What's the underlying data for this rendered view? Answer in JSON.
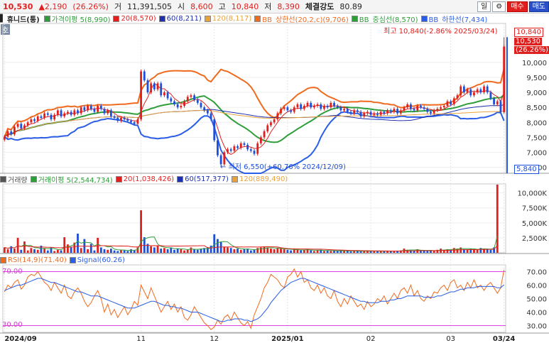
{
  "header": {
    "price": "10,530",
    "change": "▲2,190",
    "change_pct": "(26.26%)",
    "vol_label": "거",
    "volume": "11,391,505",
    "open_label": "시",
    "open": "8,600",
    "high_label": "고",
    "high": "10,840",
    "low_label": "저",
    "low": "8,390",
    "strength_label": "체결강도",
    "strength": "80.89",
    "period_button": "일",
    "settings_button": "⚙",
    "buy_button": "매수",
    "sell_button": "매도"
  },
  "price_legend": {
    "name": "휴니드(통)",
    "items": [
      {
        "label": "가격이평 5(8,990)",
        "color": "#2e9e3a"
      },
      {
        "label": "20(8,570)",
        "color": "#e0201e"
      },
      {
        "label": "60(8,211)",
        "color": "#1e2fb0"
      },
      {
        "label": "120(8,117)",
        "color": "#e8a23a"
      },
      {
        "label": "BB_상한선(20,2,c)(9,706)",
        "color": "#f06a1e"
      },
      {
        "label": "BB_중심선(8,570)",
        "color": "#2e9e3a"
      },
      {
        "label": "BB_하한선(7,434)",
        "color": "#2a5ee6"
      }
    ],
    "ho": "호"
  },
  "annotations": {
    "max_text": "최고 10,840(-2.86% 2025/03/24)",
    "min_text": "← 최저 6,550(+60.76% 2024/12/09)",
    "tag_high": "10,840",
    "tag_price": "10,530",
    "tag_pct": "(26.26%)",
    "tag_low": "5,840"
  },
  "volume_legend": {
    "items": [
      {
        "label": "거래량",
        "color": "#555555"
      },
      {
        "label": "거래이평 5(2,544,734)",
        "color": "#2e9e3a"
      },
      {
        "label": "20(1,038,426)",
        "color": "#e0201e"
      },
      {
        "label": "60(517,377)",
        "color": "#1e2fb0"
      },
      {
        "label": "120(889,490)",
        "color": "#e8a23a"
      }
    ]
  },
  "rsi_legend": {
    "items": [
      {
        "label": "RSI(14,9)(71.40)",
        "color": "#f06a1e"
      },
      {
        "label": "Signal(60.26)",
        "color": "#2a5ee6"
      }
    ],
    "level_70": "70.00",
    "level_30": "30.00"
  },
  "x_axis": [
    {
      "label": "2024/09",
      "date_index": 0
    },
    {
      "label": "11",
      "date_index": 41
    },
    {
      "label": "12",
      "date_index": 63
    },
    {
      "label": "2025/01",
      "date_index": 85
    },
    {
      "label": "02",
      "date_index": 110
    },
    {
      "label": "03",
      "date_index": 134
    },
    {
      "label": "03/24",
      "date_index": 150
    }
  ],
  "chart_data": [
    {
      "type": "candlestick",
      "title": "휴니드(통)",
      "ylim": [
        6300,
        11300
      ],
      "yticks": [
        6500,
        7000,
        7500,
        8000,
        8500,
        9000,
        9500,
        10000
      ],
      "close": [
        7520,
        7700,
        7600,
        7850,
        7950,
        7800,
        7900,
        8000,
        8100,
        8050,
        8200,
        8150,
        8300,
        8250,
        8100,
        8250,
        8400,
        8200,
        8300,
        8350,
        8250,
        8400,
        8300,
        8500,
        8400,
        8550,
        8450,
        8350,
        8550,
        8450,
        8300,
        8400,
        8200,
        8150,
        8050,
        8150,
        8100,
        8050,
        8000,
        7950,
        8100,
        9700,
        9400,
        9000,
        9300,
        9100,
        9300,
        8900,
        9000,
        8800,
        8700,
        8600,
        8500,
        8550,
        8700,
        8850,
        8900,
        8750,
        8650,
        8500,
        8400,
        8300,
        8100,
        7400,
        6900,
        6600,
        7000,
        7100,
        7050,
        7200,
        7150,
        7300,
        7250,
        7100,
        7050,
        6950,
        7300,
        7500,
        7700,
        7900,
        8000,
        8100,
        8300,
        8450,
        8500,
        8400,
        8350,
        8500,
        8600,
        8450,
        8550,
        8650,
        8500,
        8550,
        8600,
        8450,
        8550,
        8500,
        8650,
        8550,
        8500,
        8400,
        8450,
        8350,
        8300,
        8400,
        8350,
        8200,
        8300,
        8350,
        8250,
        8300,
        8250,
        8350,
        8300,
        8400,
        8350,
        8450,
        8300,
        8400,
        8500,
        8600,
        8450,
        8400,
        8550,
        8500,
        8450,
        8350,
        8300,
        8400,
        8450,
        8500,
        8550,
        8700,
        8600,
        8800,
        8900,
        9200,
        9000,
        9100,
        8900,
        9000,
        9100,
        9000,
        9200,
        9000,
        8800,
        8600,
        8700,
        8340,
        10530
      ],
      "ma5_last": 8990,
      "ma20_last": 8570,
      "ma60_last": 8211,
      "ma120_last": 8117,
      "bb_upper_last": 9706,
      "bb_mid_last": 8570,
      "bb_lower_last": 7434,
      "high": 10840,
      "high_date": "2025/03/24",
      "low": 6550,
      "low_date": "2024/12/09"
    },
    {
      "type": "bar",
      "title": "거래량",
      "ylim": [
        0,
        11500000
      ],
      "yticks": [
        2500000,
        5000000,
        7500000,
        10000000
      ],
      "ytick_labels": [
        "2,500K",
        "5,000K",
        "7,500K",
        "10,000K"
      ],
      "values": [
        900000,
        600000,
        1100000,
        700000,
        2500000,
        500000,
        1900000,
        400000,
        800000,
        600000,
        500000,
        1200000,
        700000,
        400000,
        900000,
        300000,
        500000,
        400000,
        2600000,
        1400000,
        900000,
        1700000,
        3200000,
        800000,
        2300000,
        600000,
        1500000,
        400000,
        2500000,
        900000,
        600000,
        500000,
        700000,
        400000,
        300000,
        500000,
        400000,
        300000,
        600000,
        400000,
        900000,
        7100000,
        2600000,
        1500000,
        1100000,
        900000,
        1200000,
        700000,
        800000,
        600000,
        900000,
        500000,
        700000,
        600000,
        400000,
        500000,
        900000,
        600000,
        500000,
        700000,
        800000,
        900000,
        1200000,
        3100000,
        2300000,
        1800000,
        1000000,
        900000,
        800000,
        600000,
        700000,
        500000,
        600000,
        700000,
        400000,
        500000,
        800000,
        900000,
        1000000,
        900000,
        700000,
        600000,
        800000,
        700000,
        600000,
        500000,
        400000,
        600000,
        500000,
        400000,
        500000,
        600000,
        400000,
        300000,
        400000,
        500000,
        300000,
        400000,
        300000,
        350000,
        300000,
        400000,
        350000,
        300000,
        250000,
        300000,
        280000,
        260000,
        300000,
        320000,
        280000,
        300000,
        260000,
        280000,
        300000,
        260000,
        280000,
        300000,
        350000,
        400000,
        700000,
        500000,
        400000,
        350000,
        600000,
        400000,
        350000,
        300000,
        400000,
        350000,
        500000,
        700000,
        400000,
        600000,
        500000,
        800000,
        700000,
        900000,
        600000,
        500000,
        700000,
        600000,
        500000,
        800000,
        700000,
        600000,
        500000,
        900000,
        11391505
      ]
    },
    {
      "type": "line",
      "title": "RSI",
      "ylim": [
        25,
        75
      ],
      "yticks": [
        30,
        40,
        50,
        60,
        70
      ],
      "series": [
        {
          "name": "RSI(14,9)",
          "last": 71.4,
          "values": [
            55,
            60,
            58,
            62,
            64,
            57,
            60,
            66,
            68,
            67,
            70,
            66,
            62,
            60,
            56,
            62,
            58,
            54,
            60,
            52,
            50,
            55,
            58,
            54,
            48,
            44,
            47,
            52,
            56,
            50,
            40,
            46,
            38,
            42,
            36,
            40,
            44,
            38,
            42,
            48,
            45,
            60,
            55,
            50,
            58,
            52,
            46,
            40,
            44,
            48,
            42,
            46,
            40,
            44,
            36,
            34,
            38,
            44,
            40,
            36,
            32,
            30,
            27,
            29,
            34,
            31,
            36,
            38,
            34,
            40,
            36,
            32,
            30,
            33,
            28,
            38,
            44,
            50,
            58,
            62,
            68,
            66,
            64,
            60,
            58,
            66,
            68,
            72,
            66,
            70,
            62,
            64,
            58,
            56,
            60,
            54,
            58,
            52,
            50,
            56,
            48,
            44,
            50,
            46,
            52,
            48,
            44,
            46,
            42,
            48,
            44,
            46,
            50,
            48,
            52,
            46,
            50,
            54,
            50,
            56,
            58,
            54,
            60,
            52,
            56,
            50,
            48,
            52,
            50,
            55,
            54,
            58,
            60,
            56,
            62,
            64,
            58,
            60,
            56,
            62,
            58,
            64,
            58,
            60,
            56,
            60,
            62,
            58,
            54,
            58,
            71.4
          ]
        },
        {
          "name": "Signal",
          "last": 60.26,
          "values": [
            56,
            57,
            58,
            59,
            60,
            60,
            61,
            62,
            63,
            64,
            65,
            65,
            64,
            63,
            62,
            62,
            61,
            60,
            59,
            58,
            57,
            56,
            55,
            55,
            54,
            53,
            52,
            52,
            52,
            51,
            50,
            49,
            48,
            47,
            46,
            45,
            44,
            43,
            43,
            43,
            44,
            45,
            46,
            47,
            48,
            48,
            47,
            46,
            45,
            45,
            44,
            44,
            43,
            43,
            42,
            41,
            40,
            40,
            40,
            39,
            38,
            37,
            36,
            35,
            34,
            33,
            33,
            34,
            34,
            35,
            35,
            35,
            34,
            34,
            33,
            34,
            35,
            37,
            40,
            43,
            47,
            50,
            53,
            56,
            58,
            60,
            62,
            63,
            64,
            65,
            65,
            64,
            63,
            62,
            61,
            60,
            59,
            58,
            57,
            56,
            55,
            54,
            53,
            52,
            51,
            50,
            49,
            48,
            48,
            47,
            47,
            47,
            47,
            48,
            48,
            48,
            49,
            49,
            50,
            50,
            51,
            52,
            52,
            52,
            52,
            52,
            51,
            51,
            51,
            51,
            52,
            52,
            53,
            54,
            55,
            55,
            56,
            57,
            57,
            58,
            58,
            58,
            59,
            59,
            59,
            59,
            59,
            59,
            58,
            58,
            60.26
          ]
        }
      ],
      "levels": [
        70,
        30
      ]
    }
  ]
}
